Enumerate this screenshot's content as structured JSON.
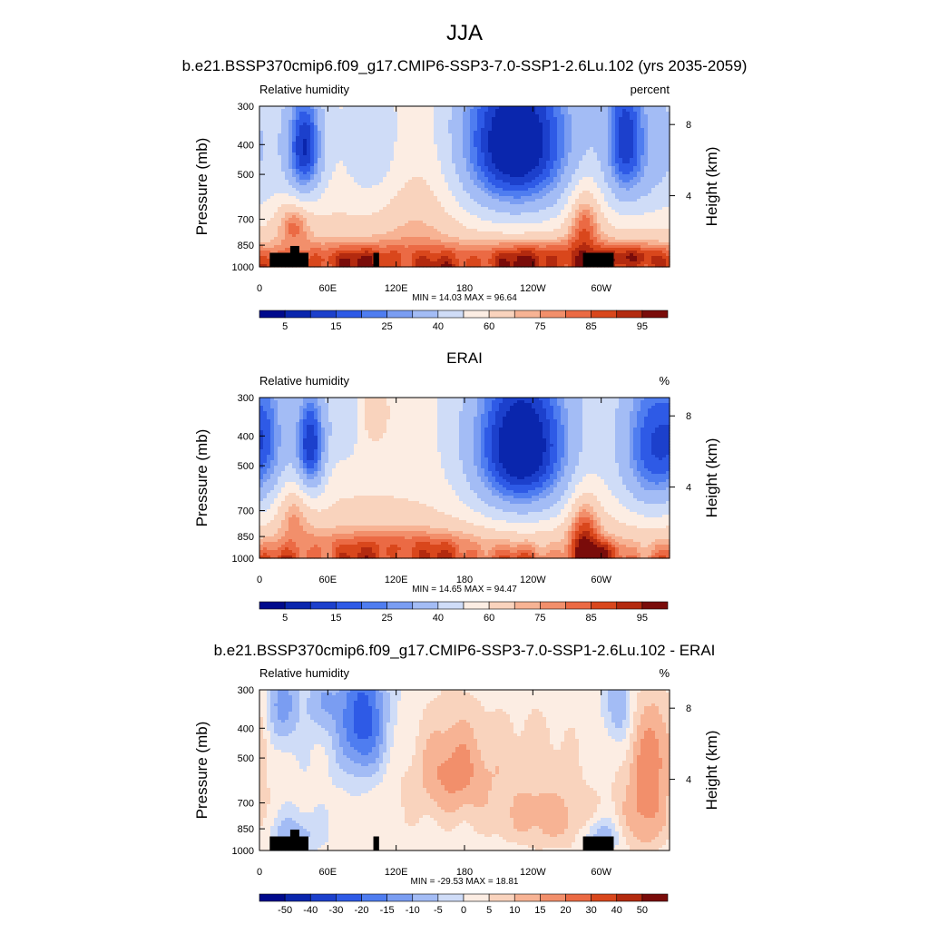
{
  "figure": {
    "title": "JJA"
  },
  "colors": {
    "pos_scale": [
      "#000a8c",
      "#0a26ad",
      "#1c40cc",
      "#2e5ae6",
      "#4f7df0",
      "#7a9df2",
      "#a3bcf5",
      "#cfdcf7",
      "#fcede3",
      "#f9d3bd",
      "#f7b394",
      "#f28f6b",
      "#eb6a44",
      "#d9471c",
      "#b32a0f",
      "#7a0c0a"
    ],
    "diff_scale": [
      "#000a8c",
      "#0a26ad",
      "#1c40cc",
      "#2e5ae6",
      "#4f7df0",
      "#7a9df2",
      "#a3bcf5",
      "#cfdcf7",
      "#fcede3",
      "#f9d3bd",
      "#f7b394",
      "#f28f6b",
      "#eb6a44",
      "#d9471c",
      "#b32a0f",
      "#7a0c0a"
    ],
    "terrain": "#000000"
  },
  "chart_data": [
    {
      "type": "heatmap",
      "title": "b.e21.BSSP370cmip6.f09_g17.CMIP6-SSP3-7.0-SSP1-2.6Lu.102 (yrs 2035-2059)",
      "left_label": "Relative humidity",
      "right_label": "percent",
      "ylabel": "Pressure (mb)",
      "ylabel_right": "Height (km)",
      "y_ticks": [
        "300",
        "400",
        "500",
        "700",
        "850",
        "1000"
      ],
      "y_right_ticks": [
        "8",
        "4"
      ],
      "x_ticks": [
        "0",
        "60E",
        "120E",
        "180",
        "120W",
        "60W"
      ],
      "stats": "MIN =  14.03  MAX =  96.64",
      "colorbar_labels": [
        "5",
        "15",
        "25",
        "40",
        "60",
        "75",
        "85",
        "95"
      ],
      "xlim_lon": [
        0,
        360
      ],
      "ylim_p": [
        300,
        1000
      ],
      "scale": "log-pressure",
      "field": "rh_model"
    },
    {
      "type": "heatmap",
      "title": "ERAI",
      "left_label": "Relative humidity",
      "right_label": "%",
      "ylabel": "Pressure (mb)",
      "ylabel_right": "Height (km)",
      "y_ticks": [
        "300",
        "400",
        "500",
        "700",
        "850",
        "1000"
      ],
      "y_right_ticks": [
        "8",
        "4"
      ],
      "x_ticks": [
        "0",
        "60E",
        "120E",
        "180",
        "120W",
        "60W"
      ],
      "stats": "MIN =  14.65  MAX =  94.47",
      "colorbar_labels": [
        "5",
        "15",
        "25",
        "40",
        "60",
        "75",
        "85",
        "95"
      ],
      "xlim_lon": [
        0,
        360
      ],
      "ylim_p": [
        300,
        1000
      ],
      "scale": "log-pressure",
      "field": "rh_obs"
    },
    {
      "type": "heatmap",
      "title": "b.e21.BSSP370cmip6.f09_g17.CMIP6-SSP3-7.0-SSP1-2.6Lu.102 - ERAI",
      "left_label": "Relative humidity",
      "right_label": "%",
      "ylabel": "Pressure (mb)",
      "ylabel_right": "Height (km)",
      "y_ticks": [
        "300",
        "400",
        "500",
        "700",
        "850",
        "1000"
      ],
      "y_right_ticks": [
        "8",
        "4"
      ],
      "x_ticks": [
        "0",
        "60E",
        "120E",
        "180",
        "120W",
        "60W"
      ],
      "stats": "MIN = -29.53  MAX =  18.81",
      "colorbar_labels": [
        "-50",
        "-40",
        "-30",
        "-20",
        "-15",
        "-10",
        "-5",
        "0",
        "5",
        "10",
        "15",
        "20",
        "30",
        "40",
        "50"
      ],
      "xlim_lon": [
        0,
        360
      ],
      "ylim_p": [
        300,
        1000
      ],
      "scale": "log-pressure",
      "field": "rh_diff"
    }
  ],
  "features": {
    "rh_model": [
      {
        "lon": 40,
        "p": 410,
        "amp": -45,
        "sx": 12,
        "sp": 130
      },
      {
        "lon": 225,
        "p": 400,
        "amp": -55,
        "sx": 40,
        "sp": 200
      },
      {
        "lon": 320,
        "p": 380,
        "amp": -30,
        "sx": 12,
        "sp": 160
      },
      {
        "lon": 345,
        "p": 430,
        "amp": -20,
        "sx": 25,
        "sp": 200
      },
      {
        "lon": 100,
        "p": 420,
        "amp": -15,
        "sx": 20,
        "sp": 150
      },
      {
        "lon": 140,
        "p": 600,
        "amp": 10,
        "sx": 25,
        "sp": 250
      },
      {
        "lon": 30,
        "p": 720,
        "amp": 20,
        "sx": 10,
        "sp": 80
      },
      {
        "lon": 285,
        "p": 700,
        "amp": 25,
        "sx": 10,
        "sp": 130
      },
      {
        "lon": 240,
        "p": 920,
        "amp": 18,
        "sx": 50,
        "sp": 80
      },
      {
        "lon": 330,
        "p": 920,
        "amp": 18,
        "sx": 20,
        "sp": 60
      },
      {
        "lon": 80,
        "p": 930,
        "amp": 15,
        "sx": 40,
        "sp": 70
      }
    ],
    "rh_obs": [
      {
        "lon": 45,
        "p": 430,
        "amp": -45,
        "sx": 10,
        "sp": 130
      },
      {
        "lon": 230,
        "p": 440,
        "amp": -55,
        "sx": 35,
        "sp": 210
      },
      {
        "lon": 345,
        "p": 440,
        "amp": -40,
        "sx": 22,
        "sp": 200
      },
      {
        "lon": 10,
        "p": 400,
        "amp": -15,
        "sx": 12,
        "sp": 150
      },
      {
        "lon": 75,
        "p": 350,
        "amp": -15,
        "sx": 10,
        "sp": 100
      },
      {
        "lon": 100,
        "p": 330,
        "amp": 12,
        "sx": 10,
        "sp": 60
      },
      {
        "lon": 30,
        "p": 700,
        "amp": 15,
        "sx": 10,
        "sp": 100
      },
      {
        "lon": 285,
        "p": 800,
        "amp": 25,
        "sx": 10,
        "sp": 160
      },
      {
        "lon": 120,
        "p": 900,
        "amp": 12,
        "sx": 60,
        "sp": 80
      },
      {
        "lon": 300,
        "p": 940,
        "amp": 10,
        "sx": 15,
        "sp": 60
      }
    ],
    "rh_diff": [
      {
        "lon": 90,
        "p": 380,
        "amp": -25,
        "sx": 15,
        "sp": 130
      },
      {
        "lon": 20,
        "p": 340,
        "amp": -15,
        "sx": 10,
        "sp": 80
      },
      {
        "lon": 55,
        "p": 330,
        "amp": -10,
        "sx": 10,
        "sp": 60
      },
      {
        "lon": 170,
        "p": 550,
        "amp": 15,
        "sx": 22,
        "sp": 150
      },
      {
        "lon": 240,
        "p": 560,
        "amp": 7,
        "sx": 35,
        "sp": 180
      },
      {
        "lon": 340,
        "p": 700,
        "amp": 15,
        "sx": 15,
        "sp": 220
      },
      {
        "lon": 350,
        "p": 450,
        "amp": 9,
        "sx": 15,
        "sp": 120
      },
      {
        "lon": 260,
        "p": 820,
        "amp": 9,
        "sx": 40,
        "sp": 120
      },
      {
        "lon": 300,
        "p": 880,
        "amp": -14,
        "sx": 12,
        "sp": 80
      },
      {
        "lon": 30,
        "p": 880,
        "amp": -10,
        "sx": 15,
        "sp": 80
      },
      {
        "lon": 315,
        "p": 340,
        "amp": -12,
        "sx": 8,
        "sp": 70
      },
      {
        "lon": 120,
        "p": 700,
        "amp": 3,
        "sx": 30,
        "sp": 200
      }
    ],
    "terrain": [
      {
        "lon0": 9,
        "lon1": 29,
        "p_top": 900
      },
      {
        "lon0": 27,
        "lon1": 35,
        "p_top": 855
      },
      {
        "lon0": 34,
        "lon1": 43,
        "p_top": 900
      },
      {
        "lon0": 100,
        "lon1": 105,
        "p_top": 900
      },
      {
        "lon0": 284,
        "lon1": 311,
        "p_top": 900
      }
    ]
  }
}
